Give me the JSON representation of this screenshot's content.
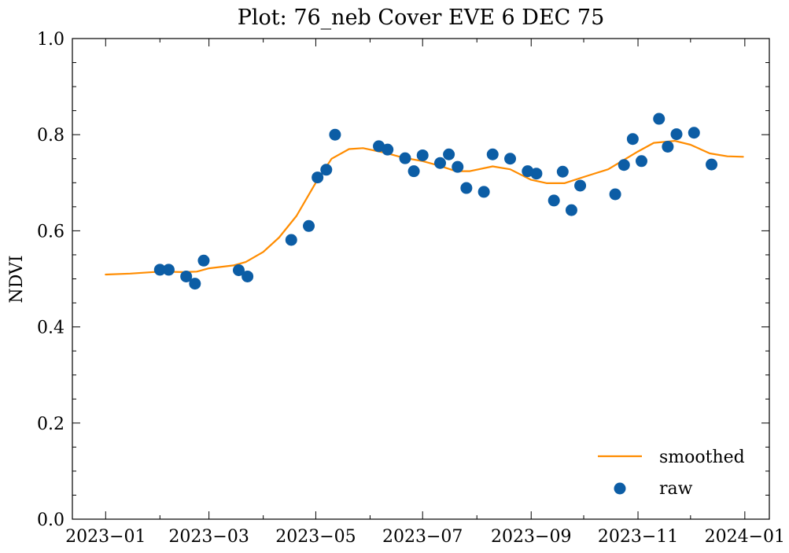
{
  "chart_data": {
    "type": "scatter",
    "title": "Plot: 76_neb Cover EVE 6 DEC 75",
    "xlabel": "",
    "ylabel": "NDVI",
    "xlim": [
      "2022-12-13",
      "2024-01-15"
    ],
    "ylim": [
      0,
      1.0
    ],
    "x_ticks": [
      "2023-01-01",
      "2023-03-01",
      "2023-05-01",
      "2023-07-01",
      "2023-09-01",
      "2023-11-01",
      "2024-01-01"
    ],
    "x_tick_labels": [
      "2023−01",
      "2023−03",
      "2023−05",
      "2023−07",
      "2023−09",
      "2023−11",
      "2024−01"
    ],
    "y_ticks": [
      0.0,
      0.2,
      0.4,
      0.6,
      0.8,
      1.0
    ],
    "y_tick_labels": [
      "0.0",
      "0.2",
      "0.4",
      "0.6",
      "0.8",
      "1.0"
    ],
    "grid": false,
    "legend_position": "bottom-right",
    "series": [
      {
        "name": "smoothed",
        "kind": "line",
        "color": "#ff8c00",
        "points": [
          {
            "x": "2023-01-01",
            "y": 0.509
          },
          {
            "x": "2023-01-15",
            "y": 0.511
          },
          {
            "x": "2023-02-01",
            "y": 0.515
          },
          {
            "x": "2023-02-15",
            "y": 0.514
          },
          {
            "x": "2023-02-22",
            "y": 0.515
          },
          {
            "x": "2023-03-01",
            "y": 0.522
          },
          {
            "x": "2023-03-15",
            "y": 0.528
          },
          {
            "x": "2023-03-22",
            "y": 0.535
          },
          {
            "x": "2023-04-01",
            "y": 0.556
          },
          {
            "x": "2023-04-10",
            "y": 0.586
          },
          {
            "x": "2023-04-20",
            "y": 0.631
          },
          {
            "x": "2023-05-01",
            "y": 0.7
          },
          {
            "x": "2023-05-10",
            "y": 0.75
          },
          {
            "x": "2023-05-20",
            "y": 0.77
          },
          {
            "x": "2023-05-28",
            "y": 0.772
          },
          {
            "x": "2023-06-10",
            "y": 0.762
          },
          {
            "x": "2023-06-20",
            "y": 0.752
          },
          {
            "x": "2023-07-01",
            "y": 0.745
          },
          {
            "x": "2023-07-10",
            "y": 0.736
          },
          {
            "x": "2023-07-20",
            "y": 0.724
          },
          {
            "x": "2023-07-28",
            "y": 0.724
          },
          {
            "x": "2023-08-10",
            "y": 0.734
          },
          {
            "x": "2023-08-20",
            "y": 0.728
          },
          {
            "x": "2023-09-01",
            "y": 0.706
          },
          {
            "x": "2023-09-10",
            "y": 0.699
          },
          {
            "x": "2023-09-20",
            "y": 0.699
          },
          {
            "x": "2023-10-01",
            "y": 0.712
          },
          {
            "x": "2023-10-15",
            "y": 0.728
          },
          {
            "x": "2023-11-01",
            "y": 0.765
          },
          {
            "x": "2023-11-10",
            "y": 0.783
          },
          {
            "x": "2023-11-22",
            "y": 0.787
          },
          {
            "x": "2023-12-01",
            "y": 0.779
          },
          {
            "x": "2023-12-12",
            "y": 0.761
          },
          {
            "x": "2023-12-22",
            "y": 0.755
          },
          {
            "x": "2023-12-31",
            "y": 0.754
          }
        ]
      },
      {
        "name": "raw",
        "kind": "scatter",
        "color": "#0c5da5",
        "points": [
          {
            "x": "2023-02-01",
            "y": 0.519
          },
          {
            "x": "2023-02-06",
            "y": 0.519
          },
          {
            "x": "2023-02-16",
            "y": 0.505
          },
          {
            "x": "2023-02-21",
            "y": 0.49
          },
          {
            "x": "2023-02-26",
            "y": 0.538
          },
          {
            "x": "2023-03-18",
            "y": 0.518
          },
          {
            "x": "2023-03-23",
            "y": 0.505
          },
          {
            "x": "2023-04-17",
            "y": 0.581
          },
          {
            "x": "2023-04-27",
            "y": 0.61
          },
          {
            "x": "2023-05-02",
            "y": 0.711
          },
          {
            "x": "2023-05-07",
            "y": 0.727
          },
          {
            "x": "2023-05-12",
            "y": 0.8
          },
          {
            "x": "2023-06-06",
            "y": 0.776
          },
          {
            "x": "2023-06-11",
            "y": 0.769
          },
          {
            "x": "2023-06-21",
            "y": 0.751
          },
          {
            "x": "2023-06-26",
            "y": 0.724
          },
          {
            "x": "2023-07-01",
            "y": 0.757
          },
          {
            "x": "2023-07-11",
            "y": 0.741
          },
          {
            "x": "2023-07-16",
            "y": 0.759
          },
          {
            "x": "2023-07-21",
            "y": 0.733
          },
          {
            "x": "2023-07-26",
            "y": 0.689
          },
          {
            "x": "2023-08-05",
            "y": 0.681
          },
          {
            "x": "2023-08-10",
            "y": 0.759
          },
          {
            "x": "2023-08-20",
            "y": 0.75
          },
          {
            "x": "2023-08-30",
            "y": 0.724
          },
          {
            "x": "2023-09-04",
            "y": 0.719
          },
          {
            "x": "2023-09-14",
            "y": 0.663
          },
          {
            "x": "2023-09-19",
            "y": 0.723
          },
          {
            "x": "2023-09-24",
            "y": 0.643
          },
          {
            "x": "2023-09-29",
            "y": 0.694
          },
          {
            "x": "2023-10-19",
            "y": 0.676
          },
          {
            "x": "2023-10-24",
            "y": 0.737
          },
          {
            "x": "2023-10-29",
            "y": 0.791
          },
          {
            "x": "2023-11-03",
            "y": 0.745
          },
          {
            "x": "2023-11-13",
            "y": 0.833
          },
          {
            "x": "2023-11-18",
            "y": 0.775
          },
          {
            "x": "2023-11-23",
            "y": 0.801
          },
          {
            "x": "2023-12-03",
            "y": 0.804
          },
          {
            "x": "2023-12-13",
            "y": 0.738
          }
        ]
      }
    ]
  }
}
